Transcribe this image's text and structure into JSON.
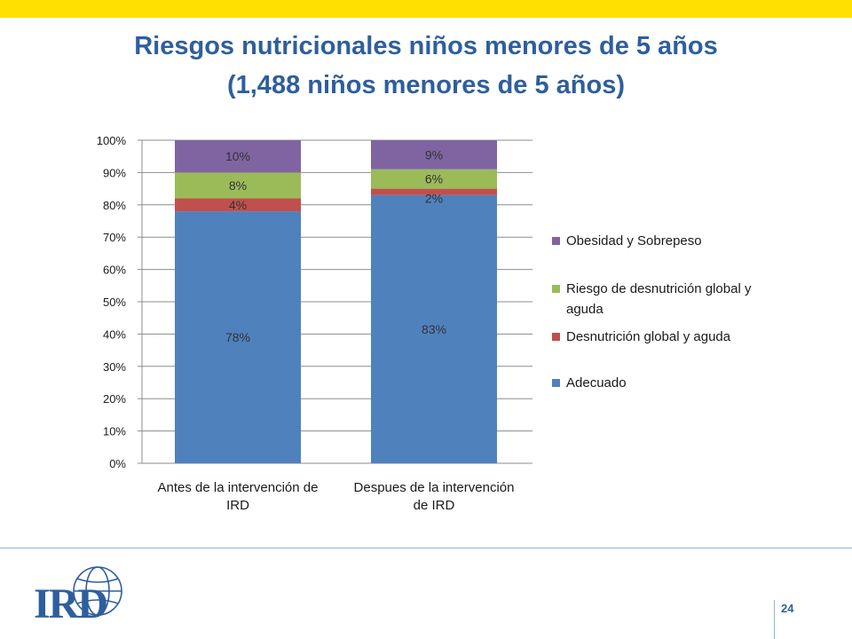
{
  "slide": {
    "title_line1": "Riesgos nutricionales niños menores de 5 años",
    "title_line2": "(1,488 niños menores de 5 años)",
    "page_number": "24",
    "logo_text": "IRD"
  },
  "colors": {
    "top_bar": "#FFE000",
    "title": "#2E5E9E",
    "Adecuado": "#4F81BD",
    "Desnutricion": "#C0504D",
    "Riesgo": "#9BBB59",
    "Obesidad": "#8064A2"
  },
  "chart_data": {
    "type": "bar",
    "stacked": true,
    "percent": true,
    "categories_lines": [
      [
        "Antes de la intervención de",
        "IRD"
      ],
      [
        "Despues de la intervención",
        "de IRD"
      ]
    ],
    "series": [
      {
        "name": "Adecuado",
        "values": [
          78,
          83
        ],
        "labels": [
          "78%",
          "83%"
        ]
      },
      {
        "name": "Desnutrición  global y aguda",
        "values": [
          4,
          2
        ],
        "labels": [
          "4%",
          "2%"
        ]
      },
      {
        "name": "Riesgo de desnutrición global  y aguda",
        "values": [
          8,
          6
        ],
        "labels": [
          "8%",
          "6%"
        ]
      },
      {
        "name": "Obesidad y Sobrepeso",
        "values": [
          10,
          9
        ],
        "labels": [
          "10%",
          "9%"
        ]
      }
    ],
    "legend_order": [
      3,
      2,
      1,
      0
    ],
    "legend_lines": [
      [
        "Obesidad y Sobrepeso"
      ],
      [
        "Riesgo de desnutrición global  y",
        "aguda"
      ],
      [
        "Desnutrición  global y aguda"
      ],
      [
        "Adecuado"
      ]
    ],
    "y_ticks": [
      "0%",
      "10%",
      "20%",
      "30%",
      "40%",
      "50%",
      "60%",
      "70%",
      "80%",
      "90%",
      "100%"
    ],
    "ylim": [
      0,
      100
    ],
    "grid": true,
    "legend_position": "right"
  }
}
